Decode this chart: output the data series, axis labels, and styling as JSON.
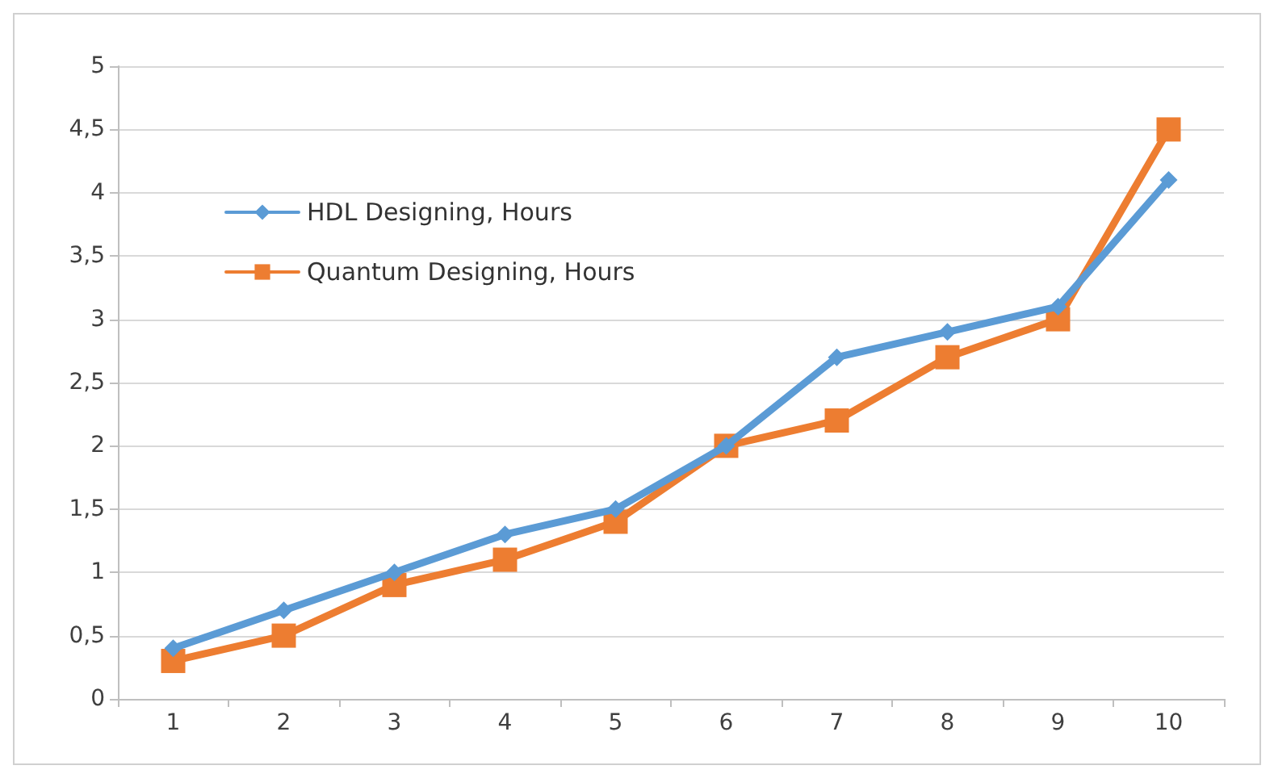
{
  "chart_data": {
    "type": "line",
    "categories": [
      "1",
      "2",
      "3",
      "4",
      "5",
      "6",
      "7",
      "8",
      "9",
      "10"
    ],
    "series": [
      {
        "name": "HDL Designing, Hours",
        "color": "#5b9bd5",
        "marker": "diamond",
        "values": [
          0.4,
          0.7,
          1.0,
          1.3,
          1.5,
          2.0,
          2.7,
          2.9,
          3.1,
          4.1
        ]
      },
      {
        "name": "Quantum Designing, Hours",
        "color": "#ed7d31",
        "marker": "square",
        "values": [
          0.3,
          0.5,
          0.9,
          1.1,
          1.4,
          2.0,
          2.2,
          2.7,
          3.0,
          4.5
        ]
      }
    ],
    "ylim": [
      0,
      5
    ],
    "yticks": [
      0,
      {
        "value": 0.5,
        "label": "0,5"
      },
      1,
      {
        "value": 1.5,
        "label": "1,5"
      },
      2,
      {
        "value": 2.5,
        "label": "2,5"
      },
      3,
      {
        "value": 3.5,
        "label": "3,5"
      },
      4,
      {
        "value": 4.5,
        "label": "4,5"
      },
      5
    ],
    "grid": "y",
    "legend": "top left",
    "line_style": "solid"
  }
}
